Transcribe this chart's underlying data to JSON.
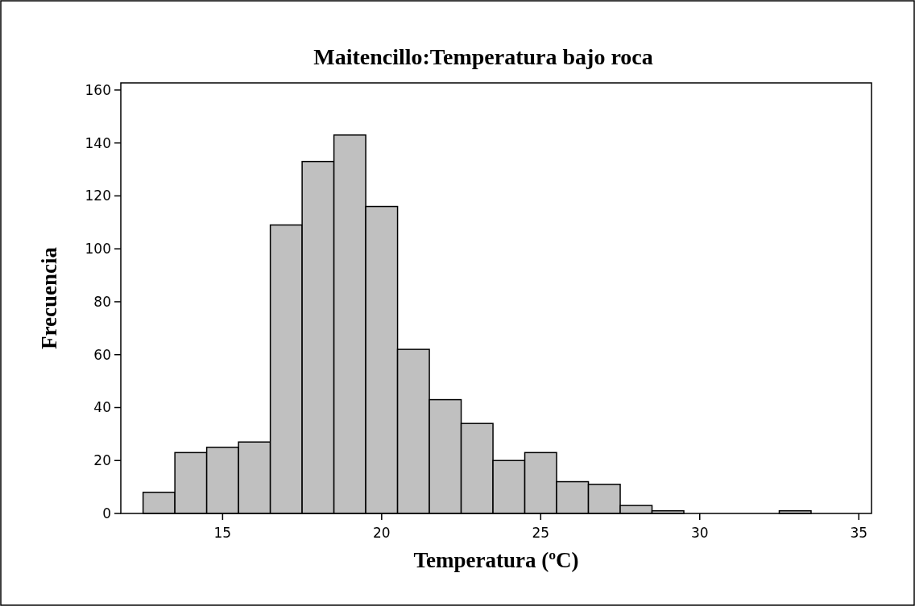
{
  "chart_data": {
    "type": "histogram",
    "title": "Maitencillo:Temperatura bajo roca",
    "xlabel": "Temperatura (ºC)",
    "ylabel": "Frecuencia",
    "bins": [
      12.5,
      13.5,
      14.5,
      15.5,
      16.5,
      17.5,
      18.5,
      19.5,
      20.5,
      21.5,
      22.5,
      23.5,
      24.5,
      25.5,
      26.5,
      27.5,
      28.5,
      29.5,
      30.5,
      31.5,
      32.5,
      33.5
    ],
    "values": [
      8,
      23,
      25,
      27,
      109,
      133,
      143,
      116,
      62,
      43,
      34,
      20,
      23,
      12,
      11,
      3,
      1,
      0,
      0,
      0,
      1
    ],
    "color": "#c0c0c0",
    "xlim": [
      11.8,
      35.4
    ],
    "xticks": [
      15,
      20,
      25,
      30,
      35
    ],
    "ylim": [
      0,
      162.7
    ],
    "yticks": [
      0,
      20,
      40,
      60,
      80,
      100,
      120,
      140,
      160
    ]
  }
}
